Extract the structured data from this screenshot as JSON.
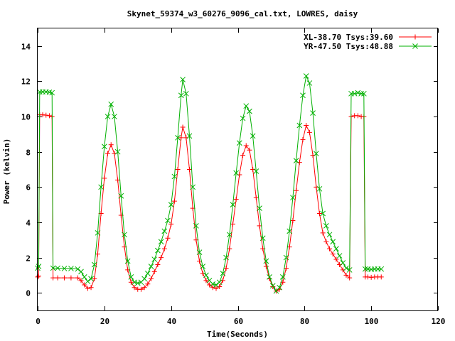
{
  "chart_data": {
    "type": "line",
    "title": "Skynet_59374_w3_60276_9096_cal.txt, LOWRES, daisy",
    "xlabel": "Time(Seconds)",
    "ylabel": "Power (kelvin)",
    "xlim": [
      0,
      120
    ],
    "ylim": [
      -1,
      15
    ],
    "x_ticks": [
      0,
      20,
      40,
      60,
      80,
      100,
      120
    ],
    "y_ticks": [
      0,
      2,
      4,
      6,
      8,
      10,
      12,
      14
    ],
    "legend_position": "top-right",
    "grid": false,
    "series": [
      {
        "name": "XL-38.70 Tsys:39.60",
        "color": "#ff0000",
        "marker": "plus",
        "points": [
          [
            0.0,
            0.9
          ],
          [
            0.3,
            0.95
          ],
          [
            0.6,
            10.1
          ],
          [
            1.5,
            10.1
          ],
          [
            2.5,
            10.08
          ],
          [
            3.5,
            10.05
          ],
          [
            4.3,
            10.0
          ],
          [
            4.6,
            0.85
          ],
          [
            6.0,
            0.85
          ],
          [
            8.0,
            0.85
          ],
          [
            10.0,
            0.85
          ],
          [
            12.0,
            0.85
          ],
          [
            13.0,
            0.7
          ],
          [
            14.0,
            0.45
          ],
          [
            15.0,
            0.25
          ],
          [
            16.0,
            0.3
          ],
          [
            17.0,
            0.8
          ],
          [
            18.0,
            2.2
          ],
          [
            19.0,
            4.5
          ],
          [
            20.0,
            6.5
          ],
          [
            21.0,
            7.9
          ],
          [
            22.0,
            8.4
          ],
          [
            23.0,
            7.9
          ],
          [
            24.0,
            6.4
          ],
          [
            25.0,
            4.4
          ],
          [
            26.0,
            2.6
          ],
          [
            27.0,
            1.3
          ],
          [
            28.0,
            0.6
          ],
          [
            29.0,
            0.3
          ],
          [
            30.0,
            0.2
          ],
          [
            31.0,
            0.2
          ],
          [
            32.0,
            0.3
          ],
          [
            33.0,
            0.5
          ],
          [
            34.0,
            0.8
          ],
          [
            35.0,
            1.2
          ],
          [
            36.0,
            1.6
          ],
          [
            37.0,
            2.0
          ],
          [
            38.0,
            2.5
          ],
          [
            39.0,
            3.1
          ],
          [
            40.0,
            3.9
          ],
          [
            41.0,
            5.2
          ],
          [
            42.0,
            7.0
          ],
          [
            43.0,
            8.8
          ],
          [
            43.5,
            9.4
          ],
          [
            44.5,
            8.8
          ],
          [
            45.5,
            7.0
          ],
          [
            46.5,
            4.8
          ],
          [
            47.5,
            3.0
          ],
          [
            48.5,
            1.8
          ],
          [
            49.5,
            1.1
          ],
          [
            50.5,
            0.7
          ],
          [
            51.5,
            0.45
          ],
          [
            52.5,
            0.3
          ],
          [
            53.5,
            0.25
          ],
          [
            54.5,
            0.35
          ],
          [
            55.5,
            0.7
          ],
          [
            56.5,
            1.4
          ],
          [
            57.5,
            2.5
          ],
          [
            58.5,
            3.9
          ],
          [
            59.5,
            5.3
          ],
          [
            60.5,
            6.7
          ],
          [
            61.5,
            7.8
          ],
          [
            62.5,
            8.35
          ],
          [
            63.5,
            8.1
          ],
          [
            64.5,
            7.0
          ],
          [
            65.5,
            5.4
          ],
          [
            66.5,
            3.8
          ],
          [
            67.5,
            2.5
          ],
          [
            68.5,
            1.5
          ],
          [
            69.5,
            0.8
          ],
          [
            70.5,
            0.35
          ],
          [
            71.5,
            0.1
          ],
          [
            72.5,
            0.2
          ],
          [
            73.5,
            0.6
          ],
          [
            74.5,
            1.4
          ],
          [
            75.5,
            2.6
          ],
          [
            76.5,
            4.1
          ],
          [
            77.5,
            5.8
          ],
          [
            78.5,
            7.4
          ],
          [
            79.5,
            8.7
          ],
          [
            80.5,
            9.5
          ],
          [
            81.5,
            9.1
          ],
          [
            82.5,
            7.8
          ],
          [
            83.5,
            6.0
          ],
          [
            84.5,
            4.5
          ],
          [
            85.5,
            3.4
          ],
          [
            86.5,
            2.9
          ],
          [
            87.5,
            2.5
          ],
          [
            88.5,
            2.2
          ],
          [
            89.5,
            1.9
          ],
          [
            90.5,
            1.6
          ],
          [
            91.5,
            1.3
          ],
          [
            92.5,
            1.0
          ],
          [
            93.5,
            0.85
          ],
          [
            94.0,
            10.0
          ],
          [
            95.0,
            10.05
          ],
          [
            96.0,
            10.05
          ],
          [
            97.0,
            10.0
          ],
          [
            97.8,
            10.0
          ],
          [
            98.2,
            0.9
          ],
          [
            99.0,
            0.9
          ],
          [
            100.0,
            0.88
          ],
          [
            101.0,
            0.9
          ],
          [
            102.0,
            0.9
          ],
          [
            103.0,
            0.9
          ]
        ]
      },
      {
        "name": "YR-47.50 Tsys:48.88",
        "color": "#00b000",
        "marker": "cross",
        "points": [
          [
            0.0,
            1.4
          ],
          [
            0.3,
            1.5
          ],
          [
            0.6,
            11.4
          ],
          [
            1.5,
            11.4
          ],
          [
            2.5,
            11.4
          ],
          [
            3.5,
            11.38
          ],
          [
            4.3,
            11.35
          ],
          [
            4.6,
            1.4
          ],
          [
            6.0,
            1.4
          ],
          [
            8.0,
            1.38
          ],
          [
            10.0,
            1.38
          ],
          [
            12.0,
            1.35
          ],
          [
            13.0,
            1.2
          ],
          [
            14.0,
            0.9
          ],
          [
            15.0,
            0.65
          ],
          [
            16.0,
            0.8
          ],
          [
            17.0,
            1.6
          ],
          [
            18.0,
            3.4
          ],
          [
            19.0,
            6.0
          ],
          [
            20.0,
            8.3
          ],
          [
            21.0,
            10.0
          ],
          [
            22.0,
            10.7
          ],
          [
            23.0,
            10.0
          ],
          [
            24.0,
            8.0
          ],
          [
            25.0,
            5.5
          ],
          [
            26.0,
            3.3
          ],
          [
            27.0,
            1.8
          ],
          [
            28.0,
            0.9
          ],
          [
            29.0,
            0.6
          ],
          [
            30.0,
            0.55
          ],
          [
            31.0,
            0.6
          ],
          [
            32.0,
            0.8
          ],
          [
            33.0,
            1.1
          ],
          [
            34.0,
            1.5
          ],
          [
            35.0,
            1.9
          ],
          [
            36.0,
            2.4
          ],
          [
            37.0,
            2.9
          ],
          [
            38.0,
            3.5
          ],
          [
            39.0,
            4.1
          ],
          [
            40.0,
            5.0
          ],
          [
            41.0,
            6.6
          ],
          [
            42.0,
            8.8
          ],
          [
            43.0,
            11.2
          ],
          [
            43.5,
            12.1
          ],
          [
            44.5,
            11.3
          ],
          [
            45.5,
            8.9
          ],
          [
            46.5,
            6.0
          ],
          [
            47.5,
            3.8
          ],
          [
            48.5,
            2.3
          ],
          [
            49.5,
            1.5
          ],
          [
            50.5,
            1.0
          ],
          [
            51.5,
            0.7
          ],
          [
            52.5,
            0.5
          ],
          [
            53.5,
            0.45
          ],
          [
            54.5,
            0.6
          ],
          [
            55.5,
            1.1
          ],
          [
            56.5,
            2.0
          ],
          [
            57.5,
            3.3
          ],
          [
            58.5,
            5.0
          ],
          [
            59.5,
            6.8
          ],
          [
            60.5,
            8.5
          ],
          [
            61.5,
            9.9
          ],
          [
            62.5,
            10.6
          ],
          [
            63.5,
            10.3
          ],
          [
            64.5,
            8.9
          ],
          [
            65.5,
            6.9
          ],
          [
            66.5,
            4.8
          ],
          [
            67.5,
            3.1
          ],
          [
            68.5,
            1.8
          ],
          [
            69.5,
            0.9
          ],
          [
            70.5,
            0.4
          ],
          [
            71.5,
            0.1
          ],
          [
            72.5,
            0.3
          ],
          [
            73.5,
            0.9
          ],
          [
            74.5,
            2.0
          ],
          [
            75.5,
            3.5
          ],
          [
            76.5,
            5.4
          ],
          [
            77.5,
            7.5
          ],
          [
            78.5,
            9.5
          ],
          [
            79.5,
            11.2
          ],
          [
            80.5,
            12.3
          ],
          [
            81.5,
            11.9
          ],
          [
            82.5,
            10.2
          ],
          [
            83.5,
            7.9
          ],
          [
            84.5,
            5.9
          ],
          [
            85.5,
            4.5
          ],
          [
            86.5,
            3.8
          ],
          [
            87.5,
            3.3
          ],
          [
            88.5,
            2.9
          ],
          [
            89.5,
            2.5
          ],
          [
            90.5,
            2.1
          ],
          [
            91.5,
            1.7
          ],
          [
            92.5,
            1.4
          ],
          [
            93.5,
            1.3
          ],
          [
            94.0,
            11.3
          ],
          [
            95.0,
            11.3
          ],
          [
            96.0,
            11.35
          ],
          [
            97.0,
            11.3
          ],
          [
            97.8,
            11.3
          ],
          [
            98.2,
            1.35
          ],
          [
            99.0,
            1.35
          ],
          [
            100.0,
            1.33
          ],
          [
            101.0,
            1.35
          ],
          [
            102.0,
            1.35
          ],
          [
            103.0,
            1.35
          ]
        ]
      }
    ]
  }
}
